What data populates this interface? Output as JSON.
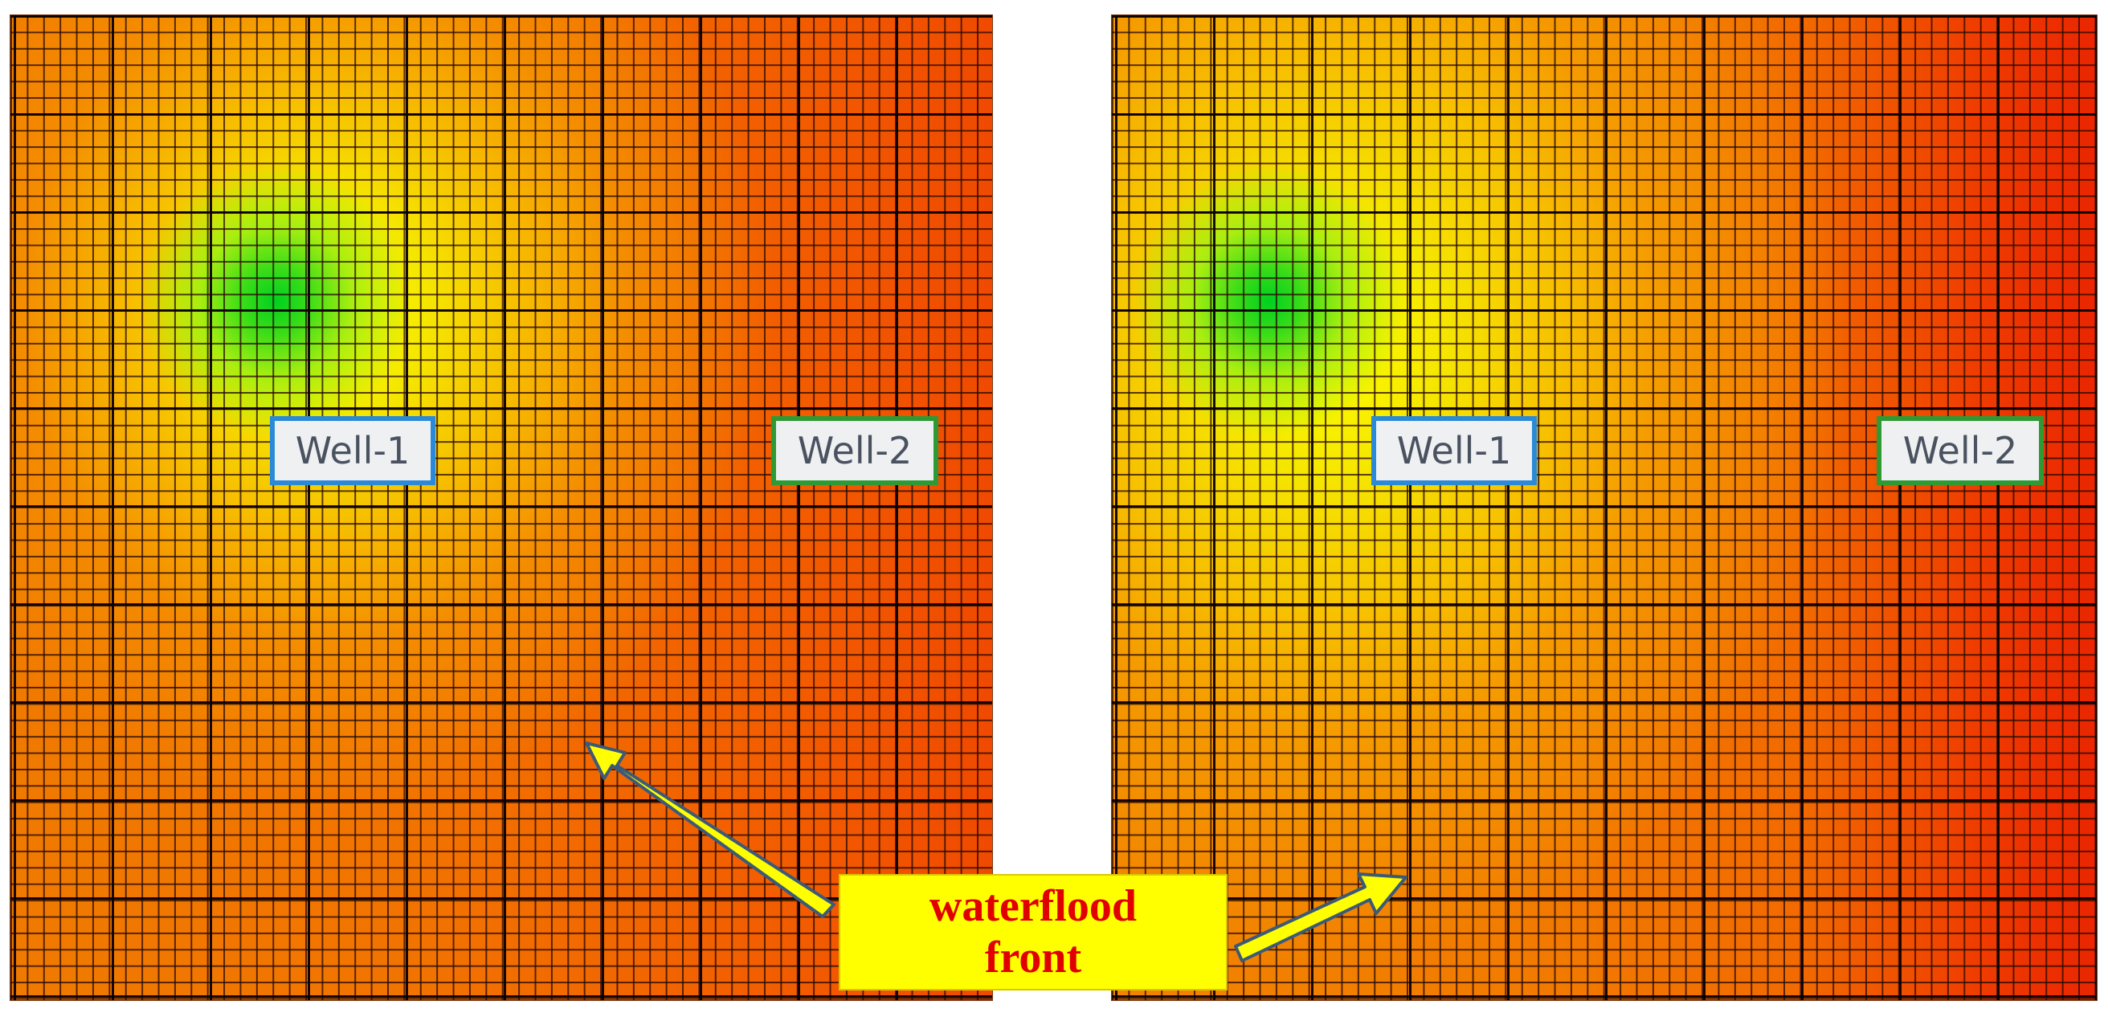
{
  "panels": {
    "left": {
      "well_1_label": "Well-1",
      "well_2_label": "Well-2"
    },
    "right": {
      "well_1_label": "Well-1",
      "well_2_label": "Well-2"
    }
  },
  "callout": {
    "line1": "waterflood",
    "line2": "front"
  },
  "colors": {
    "well_1_border": "#2b8ad8",
    "well_2_border": "#2f9a34",
    "callout_fill": "#ffff00",
    "callout_text": "#e00000",
    "arrow_fill": "#ffff00",
    "arrow_outline": "#3c5a78",
    "saturation_high": "#00d020",
    "saturation_mid": "#ffff00",
    "saturation_low": "#ea2600"
  }
}
